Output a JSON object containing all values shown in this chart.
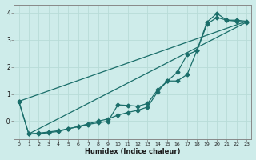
{
  "xlabel": "Humidex (Indice chaleur)",
  "bg_color": "#ceecea",
  "grid_color": "#b8dcd8",
  "line_color": "#1a6e6a",
  "xlim": [
    -0.5,
    23.5
  ],
  "ylim": [
    -0.65,
    4.3
  ],
  "line1_x": [
    0,
    1,
    2,
    3,
    4,
    5,
    6,
    7,
    8,
    9,
    10,
    11,
    12,
    13,
    14,
    15,
    16,
    17,
    18,
    19,
    20,
    21,
    22,
    23
  ],
  "line1_y": [
    0.73,
    -0.47,
    -0.47,
    -0.42,
    -0.38,
    -0.28,
    -0.2,
    -0.12,
    -0.06,
    -0.01,
    0.6,
    0.58,
    0.55,
    0.65,
    1.15,
    1.48,
    1.48,
    1.72,
    2.62,
    3.65,
    3.97,
    3.72,
    3.72,
    3.68
  ],
  "line2_x": [
    0,
    1,
    2,
    3,
    4,
    5,
    6,
    7,
    8,
    9,
    10,
    11,
    12,
    13,
    14,
    15,
    16,
    17,
    18,
    19,
    20,
    21,
    22,
    23
  ],
  "line2_y": [
    0.73,
    -0.47,
    -0.44,
    -0.4,
    -0.35,
    -0.28,
    -0.2,
    -0.1,
    0.0,
    0.08,
    0.22,
    0.32,
    0.4,
    0.52,
    1.08,
    1.48,
    1.8,
    2.45,
    2.6,
    3.58,
    3.82,
    3.72,
    3.68,
    3.65
  ],
  "line3_x": [
    0,
    23
  ],
  "line3_y": [
    0.73,
    3.68
  ],
  "line4_x": [
    1,
    23
  ],
  "line4_y": [
    -0.47,
    3.65
  ]
}
